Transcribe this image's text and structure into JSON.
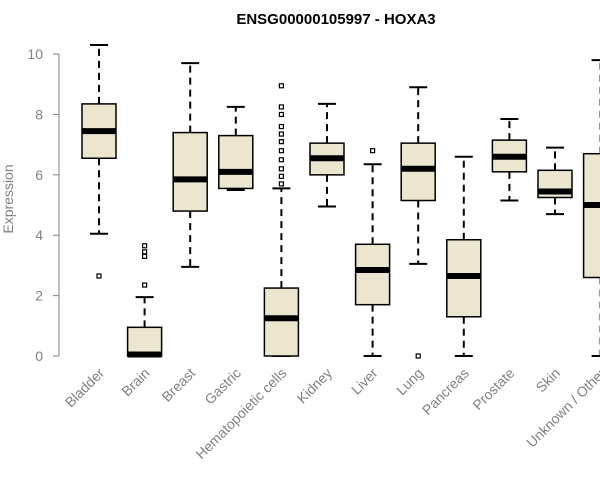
{
  "chart_data": {
    "type": "box",
    "title": "ENSG00000105997 - HOXA3",
    "ylabel": "Expression",
    "xlabel": "",
    "ylim": [
      0,
      10.4
    ],
    "yticks": [
      0,
      2,
      4,
      6,
      8,
      10
    ],
    "colors": {
      "box_fill": "#ede6cf",
      "stroke": "#000000",
      "axis": "#808080"
    },
    "categories": [
      "Bladder",
      "Brain",
      "Breast",
      "Gastric",
      "Hematopoietic cells",
      "Kidney",
      "Liver",
      "Lung",
      "Pancreas",
      "Prostate",
      "Skin",
      "Unknown / Other"
    ],
    "boxes": [
      {
        "name": "Bladder",
        "min": 4.05,
        "q1": 6.55,
        "median": 7.45,
        "q3": 8.35,
        "max": 10.3,
        "outliers": [
          2.65
        ]
      },
      {
        "name": "Brain",
        "min": 0.0,
        "q1": 0.0,
        "median": 0.05,
        "q3": 0.95,
        "max": 1.95,
        "outliers": [
          2.35,
          3.3,
          3.45,
          3.65
        ]
      },
      {
        "name": "Breast",
        "min": 2.95,
        "q1": 4.8,
        "median": 5.85,
        "q3": 7.4,
        "max": 9.7,
        "outliers": []
      },
      {
        "name": "Gastric",
        "min": 5.5,
        "q1": 5.55,
        "median": 6.1,
        "q3": 7.3,
        "max": 8.25,
        "outliers": []
      },
      {
        "name": "Hematopoietic cells",
        "min": 0.0,
        "q1": 0.0,
        "median": 1.25,
        "q3": 2.25,
        "max": 5.55,
        "outliers": [
          5.7,
          5.95,
          6.2,
          6.5,
          6.8,
          7.1,
          7.35,
          7.6,
          8.0,
          8.25,
          8.95
        ]
      },
      {
        "name": "Kidney",
        "min": 4.95,
        "q1": 6.0,
        "median": 6.55,
        "q3": 7.05,
        "max": 8.35,
        "outliers": []
      },
      {
        "name": "Liver",
        "min": 0.0,
        "q1": 1.7,
        "median": 2.85,
        "q3": 3.7,
        "max": 6.35,
        "outliers": [
          6.8
        ]
      },
      {
        "name": "Lung",
        "min": 3.05,
        "q1": 5.15,
        "median": 6.2,
        "q3": 7.05,
        "max": 8.9,
        "outliers": [
          0.0
        ]
      },
      {
        "name": "Pancreas",
        "min": 0.0,
        "q1": 1.3,
        "median": 2.65,
        "q3": 3.85,
        "max": 6.6,
        "outliers": []
      },
      {
        "name": "Prostate",
        "min": 5.15,
        "q1": 6.1,
        "median": 6.6,
        "q3": 7.15,
        "max": 7.85,
        "outliers": []
      },
      {
        "name": "Skin",
        "min": 4.7,
        "q1": 5.25,
        "median": 5.45,
        "q3": 6.15,
        "max": 6.9,
        "outliers": []
      },
      {
        "name": "Unknown / Other",
        "min": 0.0,
        "q1": 2.6,
        "median": 5.0,
        "q3": 6.7,
        "max": 9.8,
        "outliers": []
      }
    ]
  }
}
